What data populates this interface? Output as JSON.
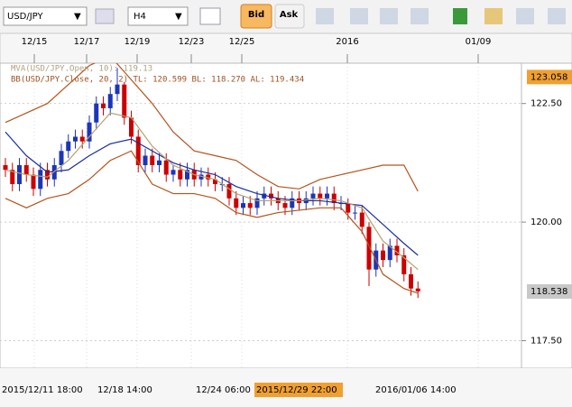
{
  "toolbar": {
    "symbol": "USD/JPY",
    "timeframe": "H4",
    "bid": "Bid",
    "ask": "Ask"
  },
  "chart_data": {
    "type": "candlestick",
    "indicator_labels": [
      "MVA(USD/JPY.Open, 10): 119.13",
      "BB(USD/JPY.Close, 20, 2)  TL: 120.599  BL: 118.270  AL: 119.434"
    ],
    "top_time_labels": [
      "12/15",
      "12/17",
      "12/19",
      "12/23",
      "12/25",
      "2016",
      "01/09"
    ],
    "bottom_time_labels": [
      "2015/12/11 18:00",
      "12/18 14:00",
      "12/24 06:00",
      "2015/12/29 22:00",
      "2016/01/06 14:00"
    ],
    "ylim": [
      116.92,
      123.35
    ],
    "yticks": [
      {
        "value": 117.5,
        "label": "117.50"
      },
      {
        "value": 120,
        "label": "120.00"
      },
      {
        "value": 122.5,
        "label": "122.50"
      }
    ],
    "price_markers": [
      123.058,
      118.538
    ],
    "open": [
      121.2,
      121.1,
      120.8,
      121.2,
      121.0,
      120.7,
      121.1,
      120.9,
      121.2,
      121.5,
      121.7,
      121.8,
      121.7,
      122.1,
      122.5,
      122.4,
      122.7,
      122.9,
      122.2,
      121.8,
      121.2,
      121.4,
      121.2,
      121.3,
      121.0,
      121.1,
      120.9,
      121.1,
      120.9,
      121.0,
      120.9,
      120.8,
      120.8,
      120.5,
      120.3,
      120.4,
      120.3,
      120.5,
      120.6,
      120.5,
      120.4,
      120.3,
      120.5,
      120.4,
      120.5,
      120.6,
      120.5,
      120.6,
      120.4,
      120.4,
      120.2,
      120.2,
      119.9,
      119.0,
      119.4,
      119.2,
      119.5,
      119.3,
      118.9,
      118.6
    ],
    "high": [
      121.35,
      121.25,
      121.35,
      121.35,
      121.15,
      121.25,
      121.25,
      121.35,
      121.65,
      121.85,
      121.95,
      121.95,
      122.25,
      122.65,
      122.65,
      122.85,
      123.25,
      122.95,
      122.35,
      121.95,
      121.55,
      121.55,
      121.45,
      121.45,
      121.2,
      121.25,
      121.25,
      121.25,
      121.15,
      121.15,
      121.05,
      120.95,
      120.95,
      120.65,
      120.55,
      120.55,
      120.65,
      120.75,
      120.75,
      120.65,
      120.55,
      120.65,
      120.65,
      120.65,
      120.75,
      120.75,
      120.75,
      120.75,
      120.55,
      120.5,
      120.35,
      120.35,
      120.0,
      119.55,
      119.55,
      119.65,
      119.65,
      119.45,
      119.05,
      118.75
    ],
    "low": [
      120.95,
      120.65,
      120.65,
      120.85,
      120.55,
      120.55,
      120.75,
      120.75,
      121.05,
      121.35,
      121.55,
      121.55,
      121.55,
      121.95,
      122.25,
      122.25,
      122.55,
      122.05,
      121.65,
      121.05,
      121.05,
      121.05,
      121.05,
      120.85,
      120.85,
      120.75,
      120.75,
      120.75,
      120.75,
      120.75,
      120.65,
      120.65,
      120.35,
      120.15,
      120.15,
      120.15,
      120.15,
      120.35,
      120.35,
      120.25,
      120.15,
      120.15,
      120.25,
      120.25,
      120.35,
      120.35,
      120.35,
      120.25,
      120.25,
      120.05,
      120.05,
      119.75,
      118.65,
      118.85,
      119.05,
      119.05,
      119.15,
      118.75,
      118.45,
      118.4
    ],
    "close": [
      121.1,
      120.8,
      121.2,
      121.0,
      120.7,
      121.1,
      120.9,
      121.2,
      121.5,
      121.7,
      121.8,
      121.7,
      122.1,
      122.5,
      122.4,
      122.7,
      122.9,
      122.2,
      121.8,
      121.2,
      121.4,
      121.2,
      121.3,
      121.0,
      121.1,
      120.9,
      121.1,
      120.9,
      121.0,
      120.9,
      120.8,
      120.8,
      120.5,
      120.3,
      120.4,
      120.3,
      120.5,
      120.6,
      120.5,
      120.4,
      120.3,
      120.5,
      120.4,
      120.5,
      120.6,
      120.5,
      120.6,
      120.4,
      120.4,
      120.2,
      120.2,
      119.9,
      119.0,
      119.4,
      119.2,
      119.5,
      119.3,
      118.9,
      118.6,
      118.54
    ],
    "up_color": "#1c35b8",
    "down_color": "#cc0000",
    "line_x": [
      0,
      3,
      6,
      9,
      12,
      15,
      18,
      21,
      24,
      27,
      30,
      33,
      36,
      39,
      42,
      45,
      48,
      51,
      54,
      57,
      59
    ],
    "lines": [
      {
        "color": "#1a2fa0",
        "values": [
          121.9,
          121.4,
          121.05,
          121.1,
          121.4,
          121.65,
          121.75,
          121.5,
          121.25,
          121.1,
          121.0,
          120.75,
          120.6,
          120.5,
          120.45,
          120.45,
          120.4,
          120.35,
          119.95,
          119.55,
          119.3
        ]
      },
      {
        "color": "#b8a070",
        "values": [
          121.1,
          121.0,
          120.95,
          121.3,
          121.8,
          122.3,
          122.2,
          121.6,
          121.2,
          121.0,
          120.9,
          120.6,
          120.45,
          120.45,
          120.45,
          120.5,
          120.45,
          120.3,
          119.6,
          119.25,
          119.0
        ]
      },
      {
        "color": "#b5531c",
        "values": [
          122.1,
          122.3,
          122.5,
          122.9,
          123.3,
          123.5,
          123.0,
          122.5,
          121.9,
          121.5,
          121.4,
          121.3,
          121.0,
          120.75,
          120.7,
          120.9,
          121.0,
          121.1,
          121.2,
          121.2,
          120.65
        ]
      },
      {
        "color": "#b5531c",
        "values": [
          120.5,
          120.3,
          120.5,
          120.6,
          120.9,
          121.3,
          121.5,
          120.8,
          120.6,
          120.6,
          120.5,
          120.2,
          120.1,
          120.2,
          120.25,
          120.3,
          120.3,
          119.8,
          118.9,
          118.6,
          118.5
        ]
      }
    ]
  }
}
